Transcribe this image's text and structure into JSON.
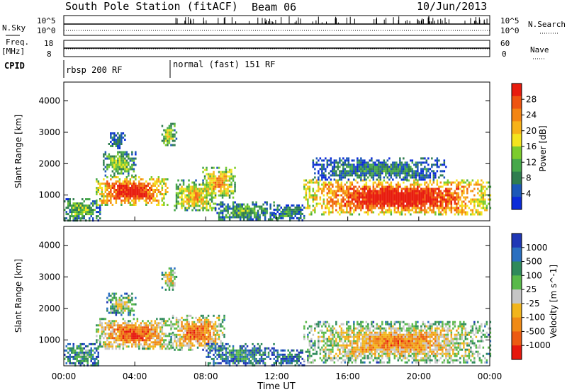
{
  "header": {
    "title": "South Pole Station (fitACF)",
    "beam": "Beam 06",
    "date": "10/Jun/2013"
  },
  "aux_panels": {
    "nsky_label": "N.Sky",
    "nsearch_label": "N.Search",
    "nsky_ticks": [
      "10^5",
      "10^0"
    ],
    "nsearch_ticks": [
      "10^5",
      "10^0"
    ],
    "freq_label": "Freq.",
    "freq_unit": "[MHz]",
    "freq_ticks": [
      "18",
      "8"
    ],
    "nave_label": "Nave",
    "nave_ticks": [
      "60",
      "0"
    ],
    "cpid_label": "CPID",
    "cpid_segments": [
      "rbsp 200 RF",
      "normal (fast) 151 RF"
    ]
  },
  "chart_data": [
    {
      "type": "heatmap",
      "name": "power",
      "xlabel": "",
      "ylabel": "Slant Range [km]",
      "x_ticks": [
        "00:00",
        "04:00",
        "08:00",
        "12:00",
        "16:00",
        "20:00",
        "00:00"
      ],
      "x_hours": [
        0,
        4,
        8,
        12,
        16,
        20,
        24
      ],
      "xlim_hours": [
        0,
        24
      ],
      "y_ticks": [
        1000,
        2000,
        3000,
        4000
      ],
      "ylim": [
        180,
        4600
      ],
      "colorbar": {
        "label": "Power [dB]",
        "ticks": [
          "4",
          "8",
          "12",
          "16",
          "20",
          "24",
          "28"
        ],
        "colors": [
          "#0b2bd8",
          "#1c58b8",
          "#2f7d4f",
          "#46a84a",
          "#7ccc2c",
          "#f4e41e",
          "#f7b218",
          "#f38513",
          "#ef5410",
          "#e81c0e"
        ]
      },
      "regions": [
        {
          "t": [
            0.0,
            2.0
          ],
          "r": [
            200,
            900
          ],
          "level": 0.35
        },
        {
          "t": [
            1.8,
            5.8
          ],
          "r": [
            700,
            1600
          ],
          "level": 0.85
        },
        {
          "t": [
            2.2,
            4.0
          ],
          "r": [
            1650,
            2400
          ],
          "level": 0.4
        },
        {
          "t": [
            2.5,
            3.4
          ],
          "r": [
            2500,
            3000
          ],
          "level": 0.2
        },
        {
          "t": [
            5.5,
            6.3
          ],
          "r": [
            2600,
            3300
          ],
          "level": 0.45
        },
        {
          "t": [
            6.2,
            8.5
          ],
          "r": [
            500,
            1500
          ],
          "level": 0.55
        },
        {
          "t": [
            7.8,
            9.6
          ],
          "r": [
            900,
            1900
          ],
          "level": 0.6
        },
        {
          "t": [
            8.5,
            11.8
          ],
          "r": [
            200,
            800
          ],
          "level": 0.3
        },
        {
          "t": [
            11.8,
            13.5
          ],
          "r": [
            200,
            700
          ],
          "level": 0.25
        },
        {
          "t": [
            13.5,
            24.0
          ],
          "r": [
            400,
            1500
          ],
          "level": 0.9
        },
        {
          "t": [
            14.0,
            21.5
          ],
          "r": [
            1500,
            2200
          ],
          "level": 0.22
        }
      ]
    },
    {
      "type": "heatmap",
      "name": "velocity",
      "xlabel": "Time UT",
      "ylabel": "Slant Range [km]",
      "x_ticks": [
        "00:00",
        "04:00",
        "08:00",
        "12:00",
        "16:00",
        "20:00",
        "00:00"
      ],
      "x_hours": [
        0,
        4,
        8,
        12,
        16,
        20,
        24
      ],
      "xlim_hours": [
        0,
        24
      ],
      "y_ticks": [
        1000,
        2000,
        3000,
        4000
      ],
      "ylim": [
        180,
        4600
      ],
      "colorbar": {
        "label": "Velocity [m s^-1]",
        "ticks": [
          "1000",
          "500",
          "100",
          "25",
          "-25",
          "-100",
          "-500",
          "-1000"
        ],
        "colors": [
          "#1f37b6",
          "#2a6fc0",
          "#2f8a5b",
          "#59b94a",
          "#c6c6c6",
          "#f2b51c",
          "#f08a16",
          "#ec5a12",
          "#e6180d"
        ]
      },
      "regions": [
        {
          "t": [
            0.0,
            2.0
          ],
          "r": [
            200,
            900
          ],
          "level": 0.3
        },
        {
          "t": [
            1.8,
            6.0
          ],
          "r": [
            700,
            1700
          ],
          "level": 0.72
        },
        {
          "t": [
            2.4,
            4.0
          ],
          "r": [
            1800,
            2500
          ],
          "level": 0.45
        },
        {
          "t": [
            5.5,
            6.3
          ],
          "r": [
            2600,
            3300
          ],
          "level": 0.55
        },
        {
          "t": [
            6.0,
            9.0
          ],
          "r": [
            700,
            1800
          ],
          "level": 0.7
        },
        {
          "t": [
            8.0,
            11.8
          ],
          "r": [
            200,
            900
          ],
          "level": 0.25
        },
        {
          "t": [
            11.8,
            13.5
          ],
          "r": [
            200,
            700
          ],
          "level": 0.2
        },
        {
          "t": [
            13.5,
            24.0
          ],
          "r": [
            300,
            1600
          ],
          "level": 0.6
        }
      ]
    }
  ]
}
